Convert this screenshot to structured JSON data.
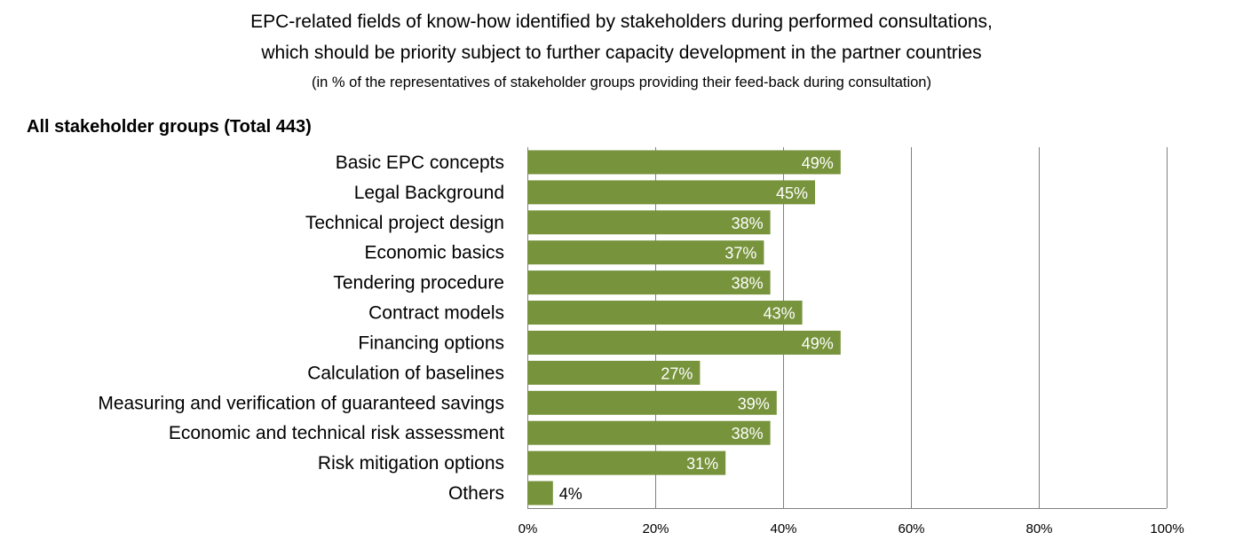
{
  "title_lines": [
    "EPC-related fields of know-how identified by stakeholders during performed consultations,",
    "which should be priority subject to further capacity development in the partner countries"
  ],
  "subtitle": "(in % of the representatives of stakeholder groups providing their feed-back during consultation)",
  "group_title": "All stakeholder groups (Total 443)",
  "chart_data": {
    "type": "bar",
    "orientation": "horizontal",
    "categories": [
      "Basic EPC concepts",
      "Legal Background",
      "Technical project design",
      "Economic basics",
      "Tendering procedure",
      "Contract models",
      "Financing options",
      "Calculation of baselines",
      "Measuring and verification of guaranteed savings",
      "Economic and technical risk assessment",
      "Risk mitigation options",
      "Others"
    ],
    "values": [
      49,
      45,
      38,
      37,
      38,
      43,
      49,
      27,
      39,
      38,
      31,
      4
    ],
    "value_labels": [
      "49%",
      "45%",
      "38%",
      "37%",
      "38%",
      "43%",
      "49%",
      "27%",
      "39%",
      "38%",
      "31%",
      "4%"
    ],
    "xlim": [
      0,
      100
    ],
    "x_ticks": [
      "0%",
      "20%",
      "40%",
      "60%",
      "80%",
      "100%"
    ],
    "grid": true,
    "bar_color": "#77933c"
  }
}
